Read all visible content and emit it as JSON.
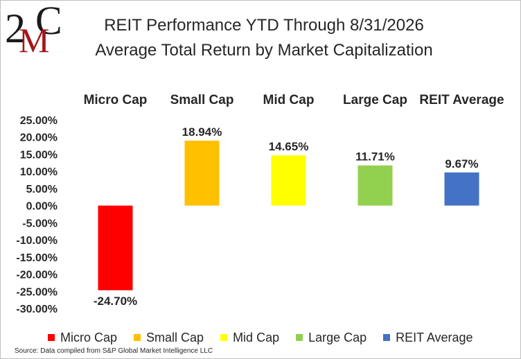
{
  "logo": {
    "text": "2MC",
    "digit": "2",
    "letter_m": "M",
    "letter_c": "C",
    "colors": {
      "dark": "#1a1a1a",
      "red": "#a1171b"
    }
  },
  "title_line1": "REIT Performance YTD Through 8/31/2026",
  "title_line2": "Average Total Return by Market Capitalization",
  "chart_data": {
    "type": "bar",
    "categories": [
      "Micro Cap",
      "Small Cap",
      "Mid Cap",
      "Large Cap",
      "REIT Average"
    ],
    "values": [
      -24.7,
      18.94,
      14.65,
      11.71,
      9.67
    ],
    "data_labels": [
      "-24.70%",
      "18.94%",
      "14.65%",
      "11.71%",
      "9.67%"
    ],
    "colors": [
      "#ff0000",
      "#ffc000",
      "#ffff00",
      "#92d050",
      "#4472c4"
    ],
    "ylim": [
      -30,
      25
    ],
    "yticks": [
      25,
      20,
      15,
      10,
      5,
      0,
      -5,
      -10,
      -15,
      -20,
      -25,
      -30
    ],
    "ytick_labels": [
      "25.00%",
      "20.00%",
      "15.00%",
      "10.00%",
      "5.00%",
      "0.00%",
      "-5.00%",
      "-10.00%",
      "-15.00%",
      "-20.00%",
      "-25.00%",
      "-30.00%"
    ],
    "category_labels_position": "top",
    "grid": false,
    "legend_position": "bottom"
  },
  "legend": [
    {
      "label": "Micro Cap",
      "color": "#ff0000"
    },
    {
      "label": "Small Cap",
      "color": "#ffc000"
    },
    {
      "label": "Mid Cap",
      "color": "#ffff00"
    },
    {
      "label": "Large Cap",
      "color": "#92d050"
    },
    {
      "label": "REIT Average",
      "color": "#4472c4"
    }
  ],
  "source": "Source: Data compiled from S&P Global Market Intelligence LLC"
}
